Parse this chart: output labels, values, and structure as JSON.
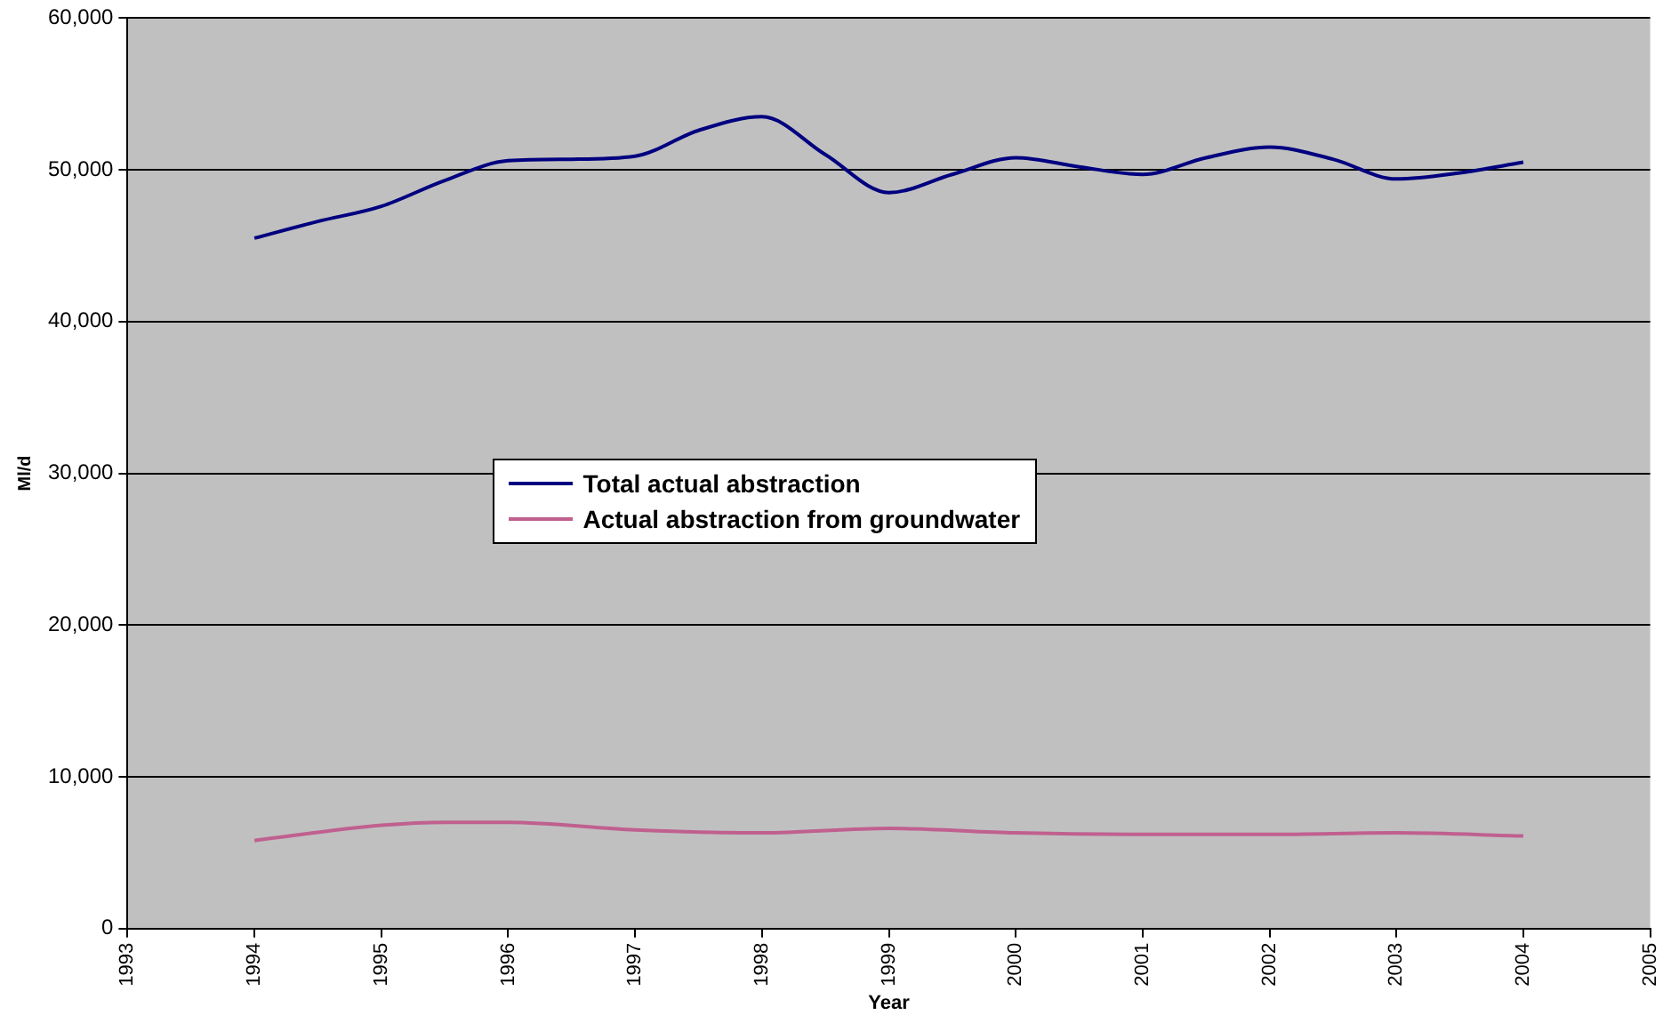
{
  "chart_data": {
    "type": "line",
    "xlabel": "Year",
    "ylabel": "Ml/d",
    "xlim": [
      1993,
      2005
    ],
    "xticks": [
      1993,
      1994,
      1995,
      1996,
      1997,
      1998,
      1999,
      2000,
      2001,
      2002,
      2003,
      2004,
      2005
    ],
    "ylim": [
      0,
      60000
    ],
    "yticks": [
      {
        "value": 0,
        "label": "0"
      },
      {
        "value": 10000,
        "label": "10,000"
      },
      {
        "value": 20000,
        "label": "20,000"
      },
      {
        "value": 30000,
        "label": "30,000"
      },
      {
        "value": 40000,
        "label": "40,000"
      },
      {
        "value": 50000,
        "label": "50,000"
      },
      {
        "value": 60000,
        "label": "60,000"
      }
    ],
    "grid": "y",
    "legend": "center",
    "marker": "none",
    "line_style": "solid",
    "series": [
      {
        "name": "Total actual abstraction",
        "color": "#000080",
        "x": [
          1994,
          1994.5,
          1995,
          1995.5,
          1996,
          1996.5,
          1997,
          1997.5,
          1998,
          1998.5,
          1999,
          1999.5,
          2000,
          2000.5,
          2001,
          2001.5,
          2002,
          2002.5,
          2003,
          2003.5,
          2004
        ],
        "values": [
          45500,
          46600,
          47600,
          49300,
          50600,
          50700,
          50900,
          52600,
          53500,
          51000,
          48500,
          49700,
          50800,
          50200,
          49700,
          50800,
          51500,
          50700,
          49400,
          49800,
          50500
        ]
      },
      {
        "name": "Actual abstraction from groundwater",
        "color": "#c0608f",
        "x": [
          1994,
          1995,
          1995.5,
          1996,
          1997,
          1998,
          1999,
          2000,
          2001,
          2002,
          2003,
          2004
        ],
        "values": [
          5800,
          6800,
          7000,
          7000,
          6500,
          6300,
          6600,
          6300,
          6200,
          6200,
          6300,
          6100
        ]
      }
    ]
  }
}
